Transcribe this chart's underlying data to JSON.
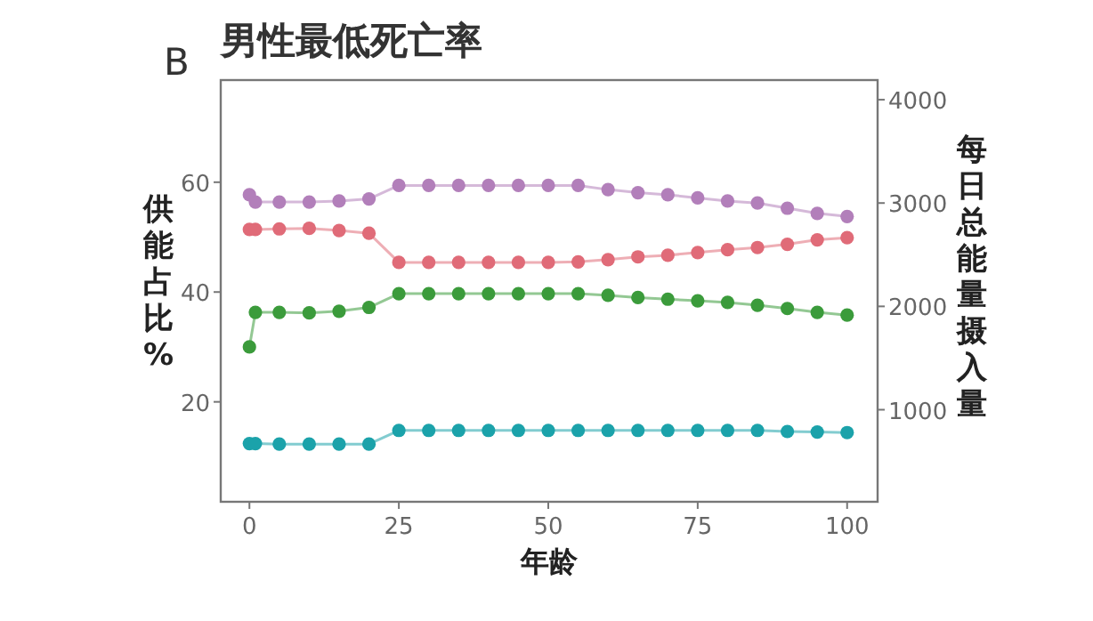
{
  "chart_data": {
    "type": "line",
    "title": "男性最低死亡率",
    "annotations": [
      "B"
    ],
    "xlabel": "年龄",
    "ylabel": "供能占比%",
    "y2label": "每日总能量摄入量",
    "x": [
      0,
      1,
      5,
      10,
      15,
      20,
      25,
      30,
      35,
      40,
      45,
      50,
      55,
      60,
      65,
      70,
      75,
      80,
      85,
      90,
      95,
      100
    ],
    "xlim": [
      -4.8,
      105.1
    ],
    "xticks": [
      0,
      25,
      50,
      75,
      100
    ],
    "ylim": [
      1.8,
      78.6
    ],
    "yticks": [
      20,
      40,
      60
    ],
    "y2lim": [
      109,
      4190
    ],
    "y2ticks": [
      1000,
      2000,
      3000,
      4000
    ],
    "grid": false,
    "marker": "circle",
    "line_style": "solid",
    "series": [
      {
        "color": "#b27fba",
        "axis": "y2",
        "values": [
          3080,
          3010,
          3010,
          3010,
          3020,
          3040,
          3170,
          3170,
          3170,
          3170,
          3170,
          3170,
          3170,
          3130,
          3100,
          3080,
          3050,
          3020,
          3000,
          2950,
          2900,
          2870
        ]
      },
      {
        "color": "#e06b78",
        "values": [
          51.4,
          51.4,
          51.5,
          51.6,
          51.2,
          50.7,
          45.4,
          45.4,
          45.4,
          45.4,
          45.4,
          45.4,
          45.5,
          45.9,
          46.4,
          46.7,
          47.2,
          47.7,
          48.1,
          48.7,
          49.5,
          49.9
        ]
      },
      {
        "color": "#3b9b3b",
        "values": [
          30.0,
          36.3,
          36.3,
          36.2,
          36.5,
          37.2,
          39.7,
          39.7,
          39.7,
          39.7,
          39.7,
          39.7,
          39.7,
          39.4,
          39.0,
          38.7,
          38.4,
          38.1,
          37.6,
          37.0,
          36.3,
          35.8
        ]
      },
      {
        "color": "#1ba2aa",
        "values": [
          12.4,
          12.4,
          12.3,
          12.3,
          12.3,
          12.3,
          14.8,
          14.8,
          14.8,
          14.8,
          14.8,
          14.8,
          14.8,
          14.8,
          14.8,
          14.8,
          14.8,
          14.8,
          14.8,
          14.6,
          14.5,
          14.4
        ]
      }
    ]
  }
}
